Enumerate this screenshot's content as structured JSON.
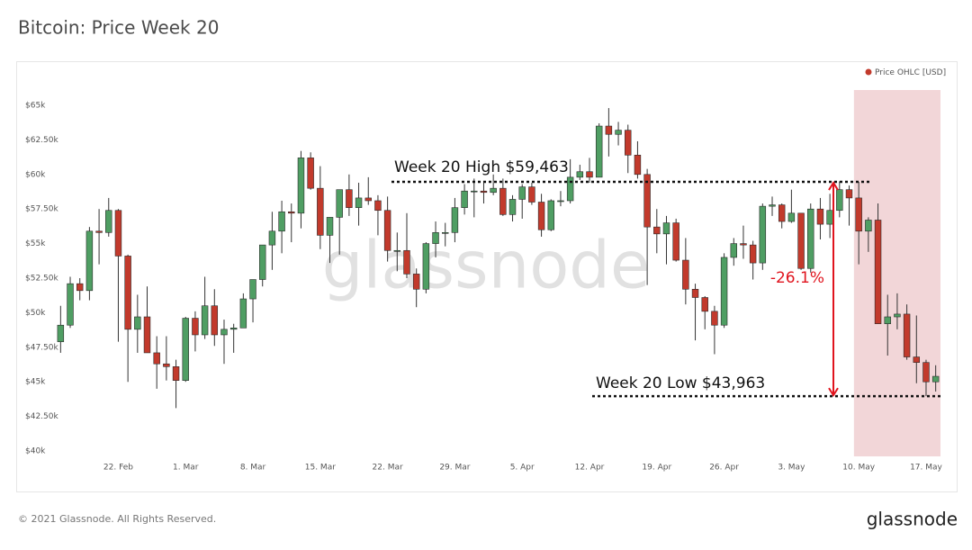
{
  "chart_data": {
    "type": "candlestick",
    "title": "Bitcoin: Price Week 20",
    "legend": "Price OHLC [USD]",
    "legend_position": "top-right",
    "watermark": "glassnode",
    "footer": "© 2021 Glassnode. All Rights Reserved.",
    "logo": "glassnode",
    "up_color": "#4f9e63",
    "down_color": "#c23a2c",
    "highlight_start": "10. May",
    "highlight_color": "#e8b4b8",
    "categories": [
      "16. Feb",
      "17. Feb",
      "18. Feb",
      "19. Feb",
      "20. Feb",
      "21. Feb",
      "22. Feb",
      "23. Feb",
      "24. Feb",
      "25. Feb",
      "26. Feb",
      "27. Feb",
      "28. Feb",
      "1. Mar",
      "2. Mar",
      "3. Mar",
      "4. Mar",
      "5. Mar",
      "6. Mar",
      "7. Mar",
      "8. Mar",
      "9. Mar",
      "10. Mar",
      "11. Mar",
      "12. Mar",
      "13. Mar",
      "14. Mar",
      "15. Mar",
      "16. Mar",
      "17. Mar",
      "18. Mar",
      "19. Mar",
      "20. Mar",
      "21. Mar",
      "22. Mar",
      "23. Mar",
      "24. Mar",
      "25. Mar",
      "26. Mar",
      "27. Mar",
      "28. Mar",
      "29. Mar",
      "30. Mar",
      "31. Mar",
      "1. Apr",
      "2. Apr",
      "3. Apr",
      "4. Apr",
      "5. Apr",
      "6. Apr",
      "7. Apr",
      "8. Apr",
      "9. Apr",
      "10. Apr",
      "11. Apr",
      "12. Apr",
      "13. Apr",
      "14. Apr",
      "15. Apr",
      "16. Apr",
      "17. Apr",
      "18. Apr",
      "19. Apr",
      "20. Apr",
      "21. Apr",
      "22. Apr",
      "23. Apr",
      "24. Apr",
      "25. Apr",
      "26. Apr",
      "27. Apr",
      "28. Apr",
      "29. Apr",
      "30. Apr",
      "1. May",
      "2. May",
      "3. May",
      "4. May",
      "5. May",
      "6. May",
      "7. May",
      "8. May",
      "9. May",
      "10. May",
      "11. May",
      "12. May",
      "13. May",
      "14. May",
      "15. May",
      "16. May",
      "17. May",
      "18. May"
    ],
    "open": [
      47900,
      49100,
      52100,
      51600,
      55900,
      55800,
      57400,
      54100,
      48800,
      49700,
      47100,
      46300,
      46100,
      45100,
      49600,
      48400,
      50500,
      48400,
      48800,
      48900,
      51000,
      52400,
      54900,
      55900,
      57300,
      57200,
      61200,
      59000,
      55600,
      56900,
      58900,
      57600,
      58300,
      58100,
      57400,
      54500,
      54500,
      52800,
      51700,
      55000,
      55800,
      55800,
      57600,
      58800,
      58800,
      58700,
      59000,
      57100,
      58200,
      59100,
      58000,
      56000,
      58100,
      58100,
      59800,
      60200,
      59800,
      63500,
      62900,
      63200,
      61400,
      60000,
      56200,
      55700,
      56500,
      53800,
      51700,
      51100,
      50100,
      49100,
      54000,
      55000,
      54900,
      53600,
      57700,
      57800,
      56600,
      57200,
      53200,
      57500,
      56400,
      57400,
      58900,
      58300,
      55900,
      56700,
      49200,
      49700,
      49900,
      46800,
      46400,
      45000
    ],
    "high": [
      50500,
      52600,
      52500,
      56200,
      57500,
      58300,
      57500,
      54200,
      51300,
      51900,
      48300,
      48300,
      46600,
      49700,
      50100,
      52600,
      51700,
      49500,
      49200,
      51400,
      52400,
      54900,
      57300,
      58100,
      57900,
      61700,
      61600,
      60600,
      56900,
      58900,
      60000,
      59400,
      59800,
      58500,
      58400,
      55800,
      57200,
      53200,
      55100,
      56600,
      56500,
      58300,
      59300,
      59700,
      59400,
      60000,
      59700,
      58500,
      59300,
      59400,
      58600,
      58200,
      58800,
      61100,
      60700,
      61200,
      63700,
      64800,
      63800,
      63600,
      62400,
      60400,
      57500,
      57000,
      56800,
      55400,
      52100,
      51200,
      50500,
      54300,
      55400,
      56300,
      55200,
      57900,
      58400,
      57900,
      58900,
      57200,
      57900,
      58300,
      58600,
      59500,
      59200,
      59463,
      56900,
      57900,
      51300,
      51400,
      50600,
      49800,
      46600,
      46200
    ],
    "low": [
      47100,
      48900,
      50900,
      50900,
      53500,
      55500,
      47900,
      45000,
      47100,
      47100,
      44500,
      45100,
      43100,
      45000,
      47200,
      48100,
      47600,
      46300,
      47100,
      48900,
      49300,
      51900,
      53100,
      54300,
      55100,
      56100,
      58900,
      54600,
      53600,
      54200,
      57000,
      56300,
      57800,
      55600,
      53700,
      53000,
      52500,
      50400,
      51400,
      54000,
      54800,
      55100,
      57100,
      56900,
      57900,
      58500,
      57000,
      56600,
      56800,
      57800,
      55500,
      55900,
      57700,
      57900,
      59600,
      59400,
      59800,
      61300,
      62100,
      60100,
      59700,
      52000,
      54300,
      53500,
      53700,
      50600,
      48000,
      48800,
      47000,
      48900,
      53400,
      53900,
      52400,
      53100,
      57000,
      56100,
      56500,
      53100,
      52900,
      55300,
      55400,
      56900,
      56300,
      53500,
      54400,
      49200,
      46900,
      48800,
      46600,
      44900,
      43963,
      44300
    ],
    "close": [
      49100,
      52100,
      51600,
      55900,
      55800,
      57400,
      54100,
      48800,
      49700,
      47100,
      46300,
      46100,
      45100,
      49600,
      48400,
      50500,
      48400,
      48800,
      48900,
      51000,
      52400,
      54900,
      55900,
      57300,
      57200,
      61200,
      59000,
      55600,
      56900,
      58900,
      57600,
      58300,
      58100,
      57400,
      54500,
      54500,
      52800,
      51700,
      55000,
      55800,
      55800,
      57600,
      58800,
      58800,
      58700,
      59000,
      57100,
      58200,
      59100,
      58000,
      56000,
      58100,
      58100,
      59800,
      60200,
      59800,
      63500,
      62900,
      63200,
      61400,
      60000,
      56200,
      55700,
      56500,
      53800,
      51700,
      51100,
      50100,
      49100,
      54000,
      55000,
      54900,
      53600,
      57700,
      57800,
      56600,
      57200,
      53200,
      57500,
      56400,
      57400,
      58900,
      58300,
      55900,
      56700,
      49200,
      49700,
      49900,
      46800,
      46400,
      45000,
      45400
    ],
    "xticks": [
      "22. Feb",
      "1. Mar",
      "8. Mar",
      "15. Mar",
      "22. Mar",
      "29. Mar",
      "5. Apr",
      "12. Apr",
      "19. Apr",
      "26. Apr",
      "3. May",
      "10. May",
      "17. May"
    ],
    "ylim": [
      40000,
      65000
    ],
    "yticks": [
      {
        "value": 40000,
        "label": "$40k"
      },
      {
        "value": 42500,
        "label": "$42.50k"
      },
      {
        "value": 45000,
        "label": "$45k"
      },
      {
        "value": 47500,
        "label": "$47.50k"
      },
      {
        "value": 50000,
        "label": "$50k"
      },
      {
        "value": 52500,
        "label": "$52.50k"
      },
      {
        "value": 55000,
        "label": "$55k"
      },
      {
        "value": 57500,
        "label": "$57.50k"
      },
      {
        "value": 60000,
        "label": "$60k"
      },
      {
        "value": 62500,
        "label": "$62.50k"
      },
      {
        "value": 65000,
        "label": "$65k"
      }
    ],
    "annotations": {
      "high": {
        "value": 59463,
        "label": "Week 20 High $59,463"
      },
      "low": {
        "value": 43963,
        "label": "Week 20 Low $43,963"
      },
      "change": {
        "value": -26.1,
        "label": "-26.1%"
      }
    }
  }
}
